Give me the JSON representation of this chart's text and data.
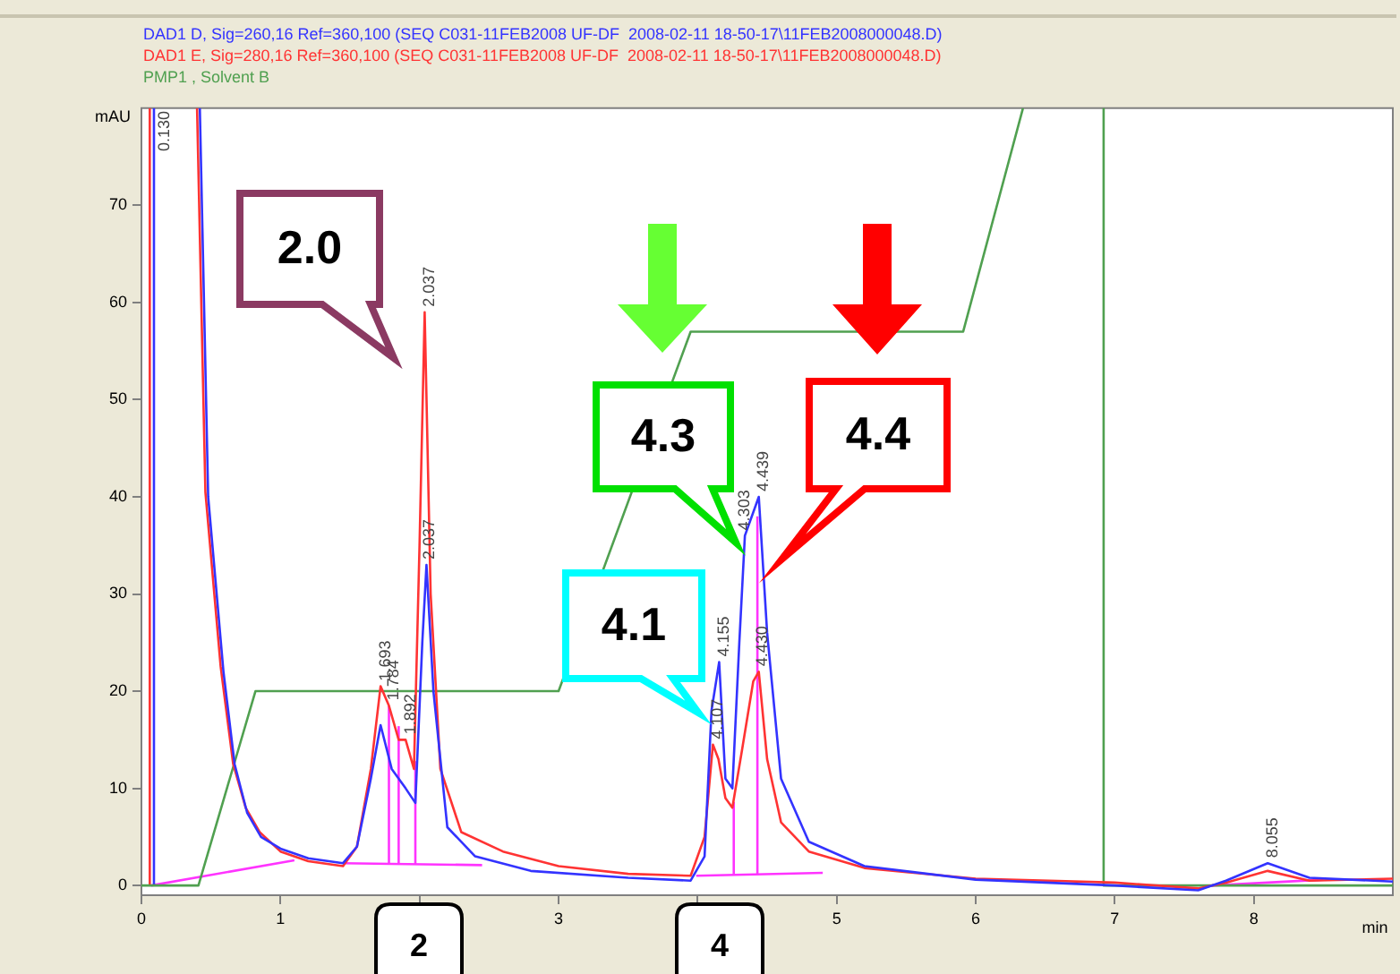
{
  "chart_data": {
    "type": "line",
    "xlabel": "min",
    "ylabel": "mAU",
    "legend": "top",
    "xlim": [
      0,
      9
    ],
    "xticks": [
      0,
      1,
      {
        "value": 2,
        "label": null
      },
      3,
      {
        "value": 4,
        "label": null
      },
      5,
      6,
      7,
      8
    ],
    "ylim": [
      -1,
      80
    ],
    "yticks": [
      0,
      10,
      20,
      30,
      40,
      50,
      60,
      70
    ],
    "grid": false,
    "series": [
      {
        "name": "DAD1 D, Sig=260,16 Ref=360,100 (SEQ C031-11FEB2008 UF-DF  2008-02-11 18-50-17\\11FEB2008000048.D)",
        "color": "#3333ff",
        "x": [
          0.42,
          0.48,
          0.59,
          0.67,
          0.76,
          0.86,
          1.0,
          1.2,
          1.45,
          1.55,
          1.65,
          1.72,
          1.8,
          1.9,
          1.97,
          2.02,
          2.05,
          2.1,
          2.2,
          2.4,
          2.8,
          3.5,
          3.95,
          4.05,
          4.1,
          4.155,
          4.2,
          4.25,
          4.3,
          4.34,
          4.44,
          4.5,
          4.6,
          4.8,
          5.2,
          6,
          7,
          7.6,
          7.8,
          8.1,
          8.4,
          9
        ],
        "values": [
          80,
          40,
          22,
          12.5,
          7.5,
          5,
          3.8,
          2.8,
          2.3,
          4,
          11,
          16.5,
          12,
          10,
          8.5,
          25,
          33,
          20,
          6,
          3,
          1.5,
          0.8,
          0.5,
          3,
          18,
          23,
          11,
          10,
          25,
          36,
          40,
          26,
          11,
          4.5,
          2,
          0.6,
          0,
          -0.5,
          0.5,
          2.3,
          0.8,
          0.4
        ]
      },
      {
        "name": "DAD1 E, Sig=280,16 Ref=360,100 (SEQ C031-11FEB2008 UF-DF  2008-02-11 18-50-17\\11FEB2008000048.D)",
        "color": "#ff3333",
        "x": [
          0.4,
          0.46,
          0.57,
          0.66,
          0.75,
          0.85,
          1.0,
          1.2,
          1.45,
          1.55,
          1.65,
          1.72,
          1.78,
          1.85,
          1.9,
          1.96,
          2.0,
          2.037,
          2.08,
          2.15,
          2.3,
          2.6,
          3.0,
          3.5,
          3.95,
          4.05,
          4.11,
          4.15,
          4.2,
          4.25,
          4.32,
          4.4,
          4.44,
          4.5,
          4.6,
          4.8,
          5.2,
          6,
          7,
          7.6,
          7.8,
          8.1,
          8.4,
          9
        ],
        "values": [
          80,
          40.5,
          22.5,
          12.5,
          8,
          5.5,
          3.5,
          2.5,
          2.0,
          4,
          12,
          20.5,
          18.5,
          15,
          15,
          12,
          35,
          59,
          30,
          12,
          5.5,
          3.5,
          2.0,
          1.2,
          1.0,
          5,
          14.5,
          13,
          9,
          8,
          14,
          21,
          22,
          13,
          6.5,
          3.5,
          1.8,
          0.7,
          0.3,
          -0.3,
          0.3,
          1.5,
          0.5,
          0.7
        ]
      },
      {
        "name": "PMP1 , Solvent B",
        "color": "#50a050",
        "x": [
          0,
          0.41,
          0.82,
          3.0,
          3.95,
          5.91,
          6.34
        ],
        "values": [
          0,
          0,
          20,
          20,
          57,
          57,
          80
        ]
      },
      {
        "color": "#50a050",
        "x": [
          6.92,
          6.92,
          9
        ],
        "values": [
          80,
          0,
          0
        ]
      },
      {
        "color": "#3333ff",
        "x": [
          0.09,
          0.09
        ],
        "values": [
          0,
          80
        ]
      },
      {
        "color": "#ff3333",
        "x": [
          0.06,
          0.06
        ],
        "values": [
          0,
          80
        ]
      },
      {
        "color": "#ff33ff",
        "x": [
          0.07,
          1.1
        ],
        "values": [
          0,
          2.6
        ]
      },
      {
        "color": "#ff33ff",
        "x": [
          1.45,
          2.45
        ],
        "values": [
          2.3,
          2.1
        ]
      },
      {
        "color": "#ff33ff",
        "x": [
          1.78,
          1.78
        ],
        "values": [
          2.3,
          18.5
        ]
      },
      {
        "color": "#ff33ff",
        "x": [
          1.85,
          1.85
        ],
        "values": [
          2.3,
          16.4
        ]
      },
      {
        "color": "#ff33ff",
        "x": [
          1.97,
          1.97
        ],
        "values": [
          2.2,
          12.8
        ]
      },
      {
        "color": "#ff33ff",
        "x": [
          3.99,
          4.9
        ],
        "values": [
          1.0,
          1.3
        ]
      },
      {
        "color": "#ff33ff",
        "x": [
          4.26,
          4.26
        ],
        "values": [
          1.1,
          8.6
        ]
      },
      {
        "color": "#ff33ff",
        "x": [
          4.43,
          4.43
        ],
        "values": [
          1.1,
          38
        ]
      },
      {
        "color": "#ff33ff",
        "x": [
          7.7,
          8.5
        ],
        "values": [
          0,
          0.6
        ]
      }
    ],
    "annotations": [
      {
        "text": "0.130",
        "x": 0.13,
        "y": 75
      },
      {
        "text": "1.693",
        "x": 1.72,
        "y": 20.5
      },
      {
        "text": "1.784",
        "x": 1.78,
        "y": 18.5
      },
      {
        "text": "1.892",
        "x": 1.9,
        "y": 15
      },
      {
        "text": "2.037",
        "x": 2.037,
        "y": 59
      },
      {
        "text": "2.037",
        "x": 2.037,
        "y": 33
      },
      {
        "text": "4.107",
        "x": 4.107,
        "y": 14.5
      },
      {
        "text": "4.155",
        "x": 4.155,
        "y": 23
      },
      {
        "text": "4.303",
        "x": 4.303,
        "y": 36
      },
      {
        "text": "4.439",
        "x": 4.439,
        "y": 40
      },
      {
        "text": "4.430",
        "x": 4.43,
        "y": 22
      },
      {
        "text": "8.055",
        "x": 8.1,
        "y": 2.3
      },
      "2.0",
      "4.3",
      "4.4",
      "4.1",
      "2",
      "4"
    ]
  }
}
